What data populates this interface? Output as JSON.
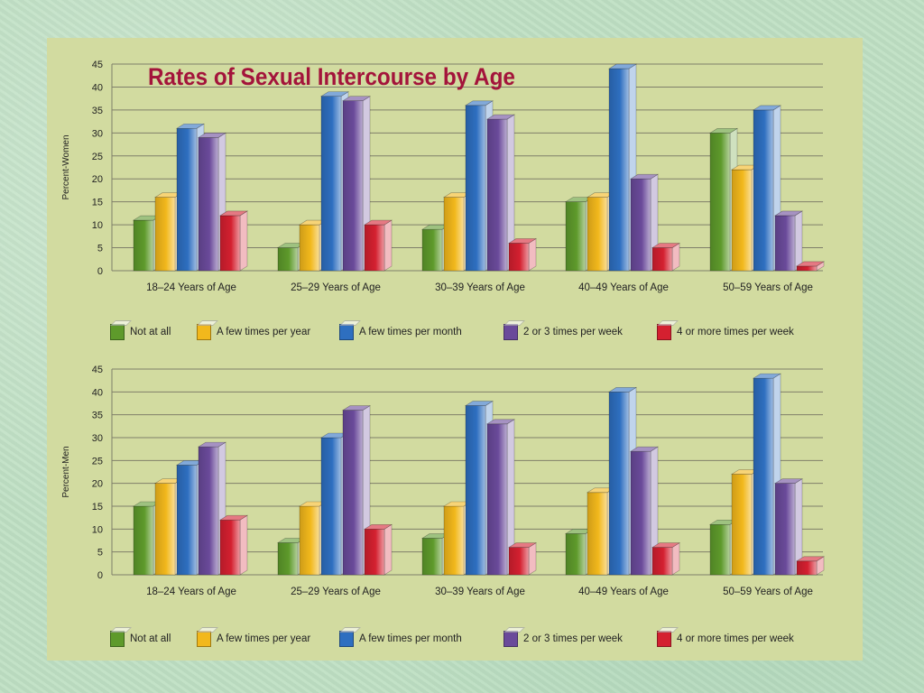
{
  "title": "Rates of Sexual Intercourse by Age",
  "colors": {
    "panel_bg": "#d2dba0",
    "title": "#a3143b",
    "not_at_all": "#5e9a2b",
    "few_per_year": "#f2b81c",
    "few_per_month": "#2e6fc0",
    "two_three_week": "#6a4a9a",
    "four_plus_week": "#d42030",
    "grid": "#7f7f6a"
  },
  "legend": [
    {
      "label": "Not at all",
      "color": "#5e9a2b"
    },
    {
      "label": "A few times per year",
      "color": "#f2b81c"
    },
    {
      "label": "A few times per month",
      "color": "#2e6fc0"
    },
    {
      "label": "2 or 3 times per week",
      "color": "#6a4a9a"
    },
    {
      "label": "4 or more times per week",
      "color": "#d42030"
    }
  ],
  "chart_data": [
    {
      "type": "bar",
      "ylabel": "Percent-Women",
      "ylim": [
        0,
        45
      ],
      "yticks": [
        "0",
        "5",
        "10",
        "15",
        "20",
        "25",
        "30",
        "35",
        "40",
        "45"
      ],
      "categories": [
        "18–24 Years of Age",
        "25–29 Years of Age",
        "30–39 Years of Age",
        "40–49 Years of Age",
        "50–59 Years of Age"
      ],
      "grid": true,
      "series": [
        {
          "name": "Not at all",
          "values": [
            11,
            5,
            9,
            15,
            30
          ]
        },
        {
          "name": "A few times per year",
          "values": [
            16,
            10,
            16,
            16,
            22
          ]
        },
        {
          "name": "A few times per month",
          "values": [
            31,
            38,
            36,
            44,
            35
          ]
        },
        {
          "name": "2 or 3 times per week",
          "values": [
            29,
            37,
            33,
            20,
            12
          ]
        },
        {
          "name": "4 or more times per week",
          "values": [
            12,
            10,
            6,
            5,
            1
          ]
        }
      ]
    },
    {
      "type": "bar",
      "ylabel": "Percent-Men",
      "ylim": [
        0,
        45
      ],
      "yticks": [
        "0",
        "5",
        "10",
        "15",
        "20",
        "25",
        "30",
        "35",
        "40",
        "45"
      ],
      "categories": [
        "18–24 Years of Age",
        "25–29 Years of Age",
        "30–39 Years of Age",
        "40–49 Years of Age",
        "50–59 Years of Age"
      ],
      "grid": true,
      "series": [
        {
          "name": "Not at all",
          "values": [
            15,
            7,
            8,
            9,
            11
          ]
        },
        {
          "name": "A few times per year",
          "values": [
            20,
            15,
            15,
            18,
            22
          ]
        },
        {
          "name": "A few times per month",
          "values": [
            24,
            30,
            37,
            40,
            43
          ]
        },
        {
          "name": "2 or 3 times per week",
          "values": [
            28,
            36,
            33,
            27,
            20
          ]
        },
        {
          "name": "4 or more times per week",
          "values": [
            12,
            10,
            6,
            6,
            3
          ]
        }
      ]
    }
  ]
}
